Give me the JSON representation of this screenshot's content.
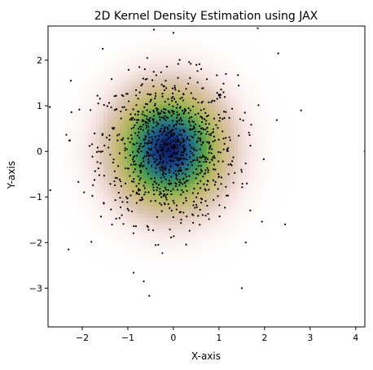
{
  "chart_data": {
    "type": "heatmap",
    "title": "2D Kernel Density Estimation using JAX",
    "xlabel": "X-axis",
    "ylabel": "Y-axis",
    "xlim": [
      -2.75,
      4.2
    ],
    "ylim": [
      -3.85,
      2.75
    ],
    "x_ticks": [
      -2,
      -1,
      0,
      1,
      2,
      3,
      4
    ],
    "y_ticks": [
      -3,
      -2,
      -1,
      0,
      1,
      2
    ],
    "grid": false,
    "legend": "none",
    "colormap": "gist_earth_r",
    "density_center": [
      -0.1,
      0.05
    ],
    "density_spread": [
      0.75,
      0.8
    ],
    "sample_count": 1000,
    "point_color": "#000000",
    "outlier_points": [
      {
        "x": 4.2,
        "y": 0.0
      },
      {
        "x": -2.7,
        "y": -0.85
      },
      {
        "x": -2.3,
        "y": -2.15
      },
      {
        "x": 1.85,
        "y": 2.7
      },
      {
        "x": 2.3,
        "y": 2.15
      },
      {
        "x": -1.55,
        "y": 2.25
      },
      {
        "x": -0.65,
        "y": -2.85
      },
      {
        "x": 0.0,
        "y": 2.6
      },
      {
        "x": 2.45,
        "y": -1.6
      },
      {
        "x": -2.25,
        "y": 1.55
      },
      {
        "x": 1.5,
        "y": -3.0
      },
      {
        "x": 2.8,
        "y": 0.9
      }
    ]
  }
}
